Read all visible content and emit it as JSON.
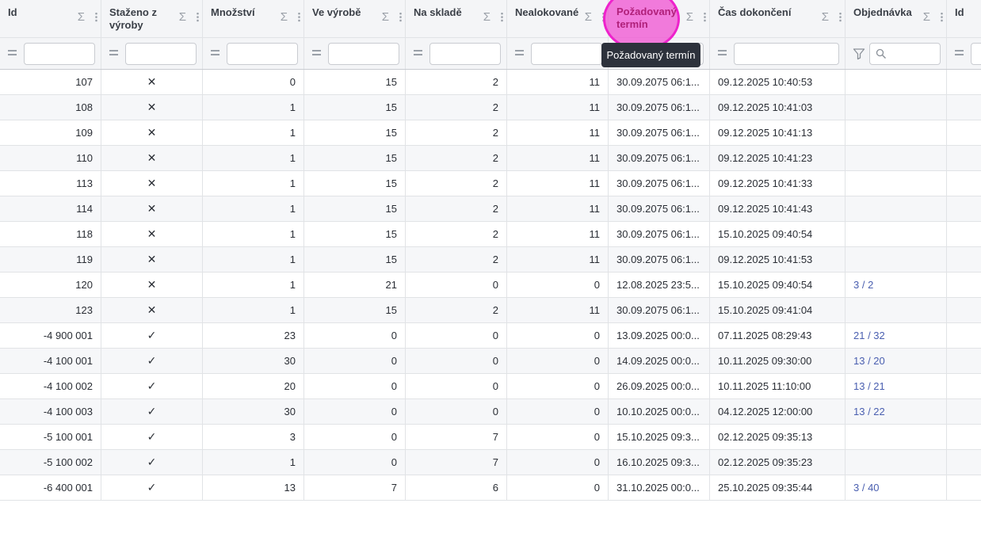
{
  "columns": [
    {
      "key": "id",
      "label": "Id",
      "width": 128,
      "align": "num"
    },
    {
      "key": "stazeno",
      "label": "Staženo z výroby",
      "width": 128,
      "align": "ctr"
    },
    {
      "key": "mnozstvi",
      "label": "Množství",
      "width": 128,
      "align": "num"
    },
    {
      "key": "ve_vyrobe",
      "label": "Ve výrobě",
      "width": 128,
      "align": "num"
    },
    {
      "key": "na_sklade",
      "label": "Na skladě",
      "width": 128,
      "align": "num"
    },
    {
      "key": "nealokovane",
      "label": "Nealokované",
      "width": 128,
      "align": "num"
    },
    {
      "key": "pozadovany",
      "label": "Požadovaný termín",
      "width": 128,
      "align": "left"
    },
    {
      "key": "cas_dokonceni",
      "label": "Čas dokončení",
      "width": 171,
      "align": "left"
    },
    {
      "key": "objednavka",
      "label": "Objednávka",
      "width": 128,
      "align": "link"
    },
    {
      "key": "id2",
      "label": "Id",
      "width": 60,
      "align": "left"
    }
  ],
  "header": {
    "sigma_symbol": "Σ"
  },
  "filter": {
    "eq_symbol": "="
  },
  "tooltip": {
    "text": "Požadovaný termín"
  },
  "rows": [
    {
      "id": "107",
      "stazeno": "✕",
      "mnozstvi": "0",
      "ve_vyrobe": "15",
      "na_sklade": "2",
      "nealokovane": "11",
      "pozadovany": "30.09.2075 06:1...",
      "cas_dokonceni": "09.12.2025 10:40:53",
      "objednavka": "",
      "id2": ""
    },
    {
      "id": "108",
      "stazeno": "✕",
      "mnozstvi": "1",
      "ve_vyrobe": "15",
      "na_sklade": "2",
      "nealokovane": "11",
      "pozadovany": "30.09.2075 06:1...",
      "cas_dokonceni": "09.12.2025 10:41:03",
      "objednavka": "",
      "id2": ""
    },
    {
      "id": "109",
      "stazeno": "✕",
      "mnozstvi": "1",
      "ve_vyrobe": "15",
      "na_sklade": "2",
      "nealokovane": "11",
      "pozadovany": "30.09.2075 06:1...",
      "cas_dokonceni": "09.12.2025 10:41:13",
      "objednavka": "",
      "id2": ""
    },
    {
      "id": "110",
      "stazeno": "✕",
      "mnozstvi": "1",
      "ve_vyrobe": "15",
      "na_sklade": "2",
      "nealokovane": "11",
      "pozadovany": "30.09.2075 06:1...",
      "cas_dokonceni": "09.12.2025 10:41:23",
      "objednavka": "",
      "id2": ""
    },
    {
      "id": "113",
      "stazeno": "✕",
      "mnozstvi": "1",
      "ve_vyrobe": "15",
      "na_sklade": "2",
      "nealokovane": "11",
      "pozadovany": "30.09.2075 06:1...",
      "cas_dokonceni": "09.12.2025 10:41:33",
      "objednavka": "",
      "id2": ""
    },
    {
      "id": "114",
      "stazeno": "✕",
      "mnozstvi": "1",
      "ve_vyrobe": "15",
      "na_sklade": "2",
      "nealokovane": "11",
      "pozadovany": "30.09.2075 06:1...",
      "cas_dokonceni": "09.12.2025 10:41:43",
      "objednavka": "",
      "id2": ""
    },
    {
      "id": "118",
      "stazeno": "✕",
      "mnozstvi": "1",
      "ve_vyrobe": "15",
      "na_sklade": "2",
      "nealokovane": "11",
      "pozadovany": "30.09.2075 06:1...",
      "cas_dokonceni": "15.10.2025 09:40:54",
      "objednavka": "",
      "id2": ""
    },
    {
      "id": "119",
      "stazeno": "✕",
      "mnozstvi": "1",
      "ve_vyrobe": "15",
      "na_sklade": "2",
      "nealokovane": "11",
      "pozadovany": "30.09.2075 06:1...",
      "cas_dokonceni": "09.12.2025 10:41:53",
      "objednavka": "",
      "id2": ""
    },
    {
      "id": "120",
      "stazeno": "✕",
      "mnozstvi": "1",
      "ve_vyrobe": "21",
      "na_sklade": "0",
      "nealokovane": "0",
      "pozadovany": "12.08.2025 23:5...",
      "cas_dokonceni": "15.10.2025 09:40:54",
      "objednavka": "3 / 2",
      "id2": ""
    },
    {
      "id": "123",
      "stazeno": "✕",
      "mnozstvi": "1",
      "ve_vyrobe": "15",
      "na_sklade": "2",
      "nealokovane": "11",
      "pozadovany": "30.09.2075 06:1...",
      "cas_dokonceni": "15.10.2025 09:41:04",
      "objednavka": "",
      "id2": ""
    },
    {
      "id": "-4 900 001",
      "stazeno": "✓",
      "mnozstvi": "23",
      "ve_vyrobe": "0",
      "na_sklade": "0",
      "nealokovane": "0",
      "pozadovany": "13.09.2025 00:0...",
      "cas_dokonceni": "07.11.2025 08:29:43",
      "objednavka": "21 / 32",
      "id2": ""
    },
    {
      "id": "-4 100 001",
      "stazeno": "✓",
      "mnozstvi": "30",
      "ve_vyrobe": "0",
      "na_sklade": "0",
      "nealokovane": "0",
      "pozadovany": "14.09.2025 00:0...",
      "cas_dokonceni": "10.11.2025 09:30:00",
      "objednavka": "13 / 20",
      "id2": ""
    },
    {
      "id": "-4 100 002",
      "stazeno": "✓",
      "mnozstvi": "20",
      "ve_vyrobe": "0",
      "na_sklade": "0",
      "nealokovane": "0",
      "pozadovany": "26.09.2025 00:0...",
      "cas_dokonceni": "10.11.2025 11:10:00",
      "objednavka": "13 / 21",
      "id2": ""
    },
    {
      "id": "-4 100 003",
      "stazeno": "✓",
      "mnozstvi": "30",
      "ve_vyrobe": "0",
      "na_sklade": "0",
      "nealokovane": "0",
      "pozadovany": "10.10.2025 00:0...",
      "cas_dokonceni": "04.12.2025 12:00:00",
      "objednavka": "13 / 22",
      "id2": ""
    },
    {
      "id": "-5 100 001",
      "stazeno": "✓",
      "mnozstvi": "3",
      "ve_vyrobe": "0",
      "na_sklade": "7",
      "nealokovane": "0",
      "pozadovany": "15.10.2025 09:3...",
      "cas_dokonceni": "02.12.2025 09:35:13",
      "objednavka": "",
      "id2": ""
    },
    {
      "id": "-5 100 002",
      "stazeno": "✓",
      "mnozstvi": "1",
      "ve_vyrobe": "0",
      "na_sklade": "7",
      "nealokovane": "0",
      "pozadovany": "16.10.2025 09:3...",
      "cas_dokonceni": "02.12.2025 09:35:23",
      "objednavka": "",
      "id2": ""
    },
    {
      "id": "-6 400 001",
      "stazeno": "✓",
      "mnozstvi": "13",
      "ve_vyrobe": "7",
      "na_sklade": "6",
      "nealokovane": "0",
      "pozadovany": "31.10.2025 00:0...",
      "cas_dokonceni": "25.10.2025 09:35:44",
      "objednavka": "3 / 40",
      "id2": ""
    }
  ]
}
